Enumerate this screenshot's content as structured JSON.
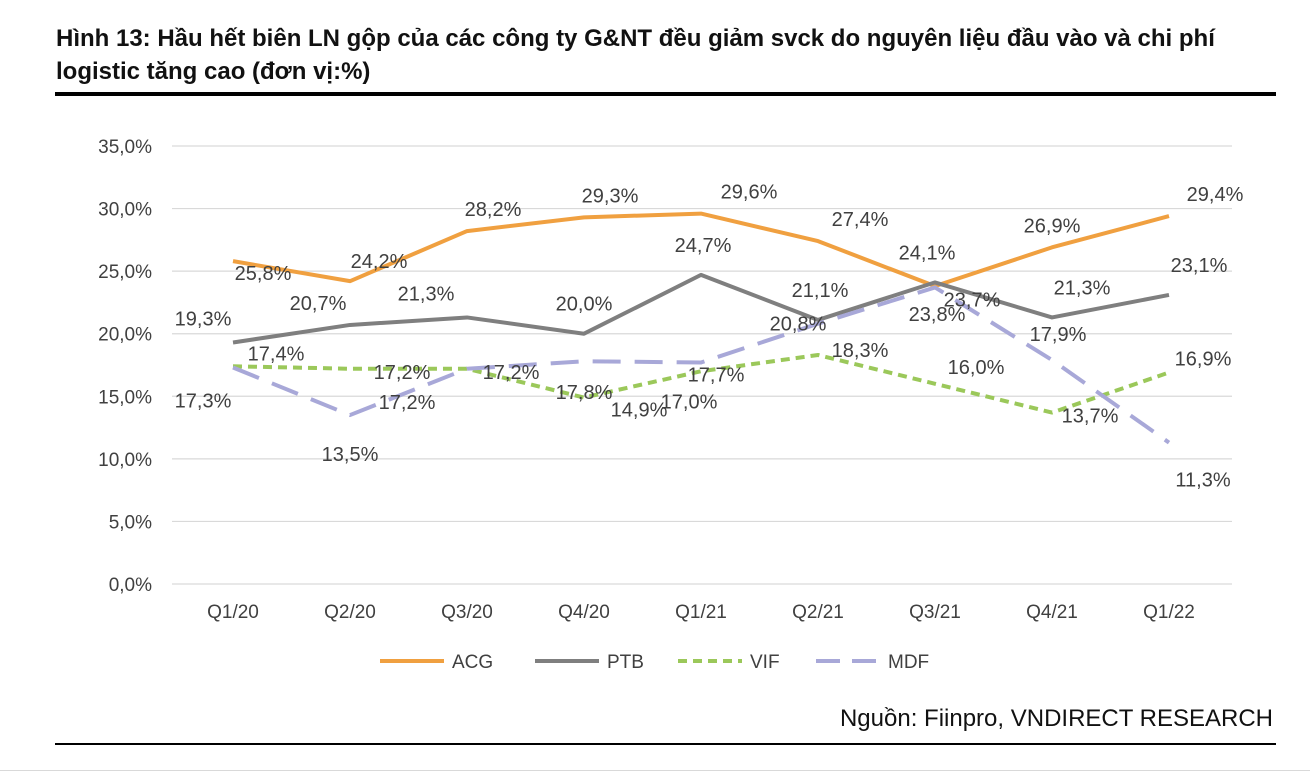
{
  "title": "Hình 13: Hầu hết biên LN gộp của các công ty G&NT đều giảm svck do nguyên liệu đầu vào và chi phí logistic tăng cao (đơn vị:%)",
  "source": "Nguồn: Fiinpro, VNDIRECT RESEARCH",
  "chart_data": {
    "type": "line",
    "title": "",
    "xlabel": "",
    "ylabel": "",
    "ylim": [
      0,
      35
    ],
    "yticks": [
      "0,0%",
      "5,0%",
      "10,0%",
      "15,0%",
      "20,0%",
      "25,0%",
      "30,0%",
      "35,0%"
    ],
    "categories": [
      "Q1/20",
      "Q2/20",
      "Q3/20",
      "Q4/20",
      "Q1/21",
      "Q2/21",
      "Q3/21",
      "Q4/21",
      "Q1/22"
    ],
    "grid": true,
    "legend_position": "bottom",
    "series": [
      {
        "name": "ACG",
        "color": "#F0A040",
        "style": "solid",
        "values": [
          25.8,
          24.2,
          28.2,
          29.3,
          29.6,
          27.4,
          23.8,
          26.9,
          29.4
        ],
        "labels": [
          "25,8%",
          "24,2%",
          "28,2%",
          "29,3%",
          "29,6%",
          "27,4%",
          "23,8%",
          "26,9%",
          "29,4%"
        ]
      },
      {
        "name": "PTB",
        "color": "#7F7F7F",
        "style": "solid",
        "values": [
          19.3,
          20.7,
          21.3,
          20.0,
          24.7,
          21.1,
          24.1,
          21.3,
          23.1
        ],
        "labels": [
          "19,3%",
          "20,7%",
          "21,3%",
          "20,0%",
          "24,7%",
          "21,1%",
          "24,1%",
          "21,3%",
          "23,1%"
        ]
      },
      {
        "name": "VIF",
        "color": "#9BC85A",
        "style": "dotted",
        "values": [
          17.4,
          17.2,
          17.2,
          14.9,
          17.0,
          18.3,
          16.0,
          13.7,
          16.9
        ],
        "labels": [
          "17,4%",
          "17,2%",
          "17,2%",
          "14,9%",
          "17,0%",
          "18,3%",
          "16,0%",
          "13,7%",
          "16,9%"
        ]
      },
      {
        "name": "MDF",
        "color": "#A8A8D8",
        "style": "dashed",
        "values": [
          17.3,
          13.5,
          17.2,
          17.8,
          17.7,
          20.8,
          23.7,
          17.9,
          11.3
        ],
        "labels": [
          "17,3%",
          "13,5%",
          "17,2%",
          "17,8%",
          "17,7%",
          "20,8%",
          "23,7%",
          "17,9%",
          "11,3%"
        ]
      }
    ]
  }
}
